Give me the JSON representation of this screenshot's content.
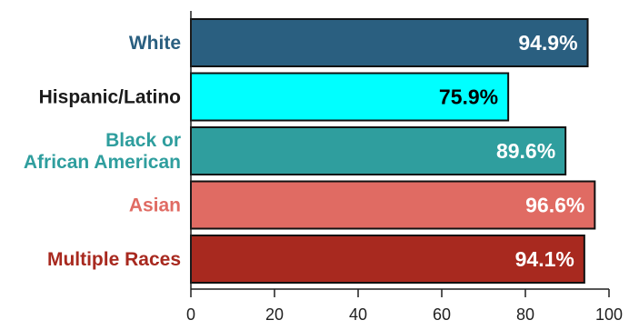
{
  "chart_data": {
    "type": "bar",
    "orientation": "horizontal",
    "categories": [
      [
        "White"
      ],
      [
        "Hispanic/Latino"
      ],
      [
        "Black or",
        "African American"
      ],
      [
        "Asian"
      ],
      [
        "Multiple Races"
      ]
    ],
    "values": [
      94.9,
      75.9,
      89.6,
      96.6,
      94.1
    ],
    "value_labels": [
      "94.9%",
      "75.9%",
      "89.6%",
      "96.6%",
      "94.1%"
    ],
    "colors": [
      "#2a5f80",
      "#00ffff",
      "#2f9e9e",
      "#e06b63",
      "#a8291f"
    ],
    "label_colors": [
      "#2a5f80",
      "#1a1a1a",
      "#2f9e9e",
      "#e06b63",
      "#a8291f"
    ],
    "value_label_colors": [
      "#ffffff",
      "#000000",
      "#ffffff",
      "#ffffff",
      "#ffffff"
    ],
    "xlim": [
      0,
      100
    ],
    "xticks": [
      0,
      20,
      40,
      60,
      80,
      100
    ],
    "xtick_labels": [
      "0",
      "20",
      "40",
      "60",
      "80",
      "100"
    ],
    "title": "",
    "xlabel": "",
    "ylabel": "",
    "grid": false
  }
}
